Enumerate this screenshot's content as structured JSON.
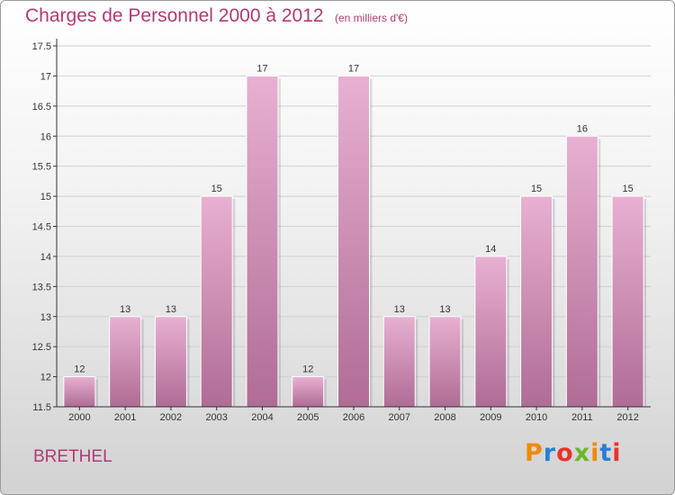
{
  "header": {
    "title": "Charges de Personnel 2000 à 2012",
    "subtitle": "(en milliers d'€)"
  },
  "footer": {
    "commune": "BRETHEL",
    "logo": "Proxiti",
    "logo_colors": [
      "#f08a00",
      "#2a7fd4",
      "#e8332a",
      "#6cb52d",
      "#f08a00",
      "#2a7fd4",
      "#e8332a"
    ]
  },
  "colors": {
    "bar_light": "#e8b0d2",
    "bar_dark": "#b06c95",
    "title": "#b03a78",
    "grid": "#d0d0d0",
    "axis": "#333333"
  },
  "chart_data": {
    "type": "bar",
    "categories": [
      "2000",
      "2001",
      "2002",
      "2003",
      "2004",
      "2005",
      "2006",
      "2007",
      "2008",
      "2009",
      "2010",
      "2011",
      "2012"
    ],
    "values": [
      12,
      13,
      13,
      15,
      17,
      12,
      17,
      13,
      13,
      14,
      15,
      16,
      15
    ],
    "value_labels": [
      "12",
      "13",
      "13",
      "15",
      "17",
      "12",
      "17",
      "13",
      "13",
      "14",
      "15",
      "16",
      "15"
    ],
    "y_ticks": [
      "11.5",
      "12",
      "12.5",
      "13",
      "13.5",
      "14",
      "14.5",
      "15",
      "15.5",
      "16",
      "16.5",
      "17",
      "17.5"
    ],
    "ylim": [
      11.5,
      17.5
    ],
    "grid": true
  }
}
